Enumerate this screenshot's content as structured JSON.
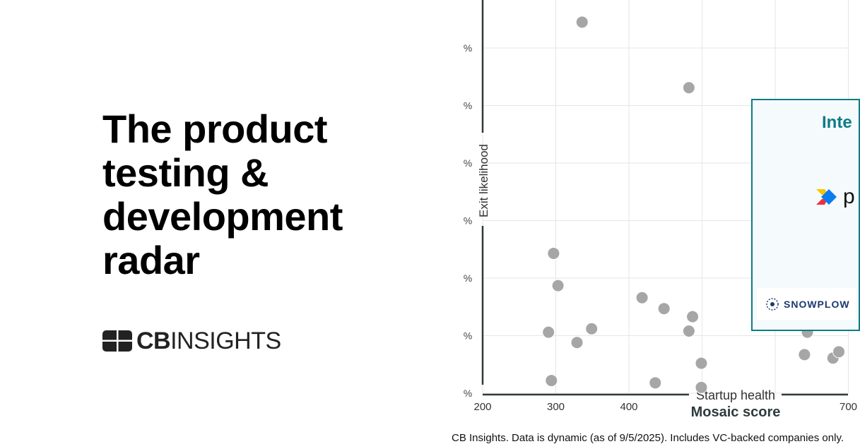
{
  "headline": "The product testing & development radar",
  "brand": {
    "logo_text_bold": "CB",
    "logo_text": "INSIGHTS"
  },
  "footer": "CB Insights. Data is dynamic (as of 9/5/2025). Includes VC-backed companies only.",
  "highlight_box": {
    "title": "Inte",
    "logos": [
      {
        "name": "p",
        "icon": "p-logo-icon"
      },
      {
        "name": "SNOWPLOW",
        "icon": "snowplow-icon"
      }
    ],
    "border_color": "#0e7c86"
  },
  "chart_data": {
    "type": "scatter",
    "xlabel": "Mosaic score",
    "xlabel_sub": "Startup health",
    "ylabel": "Exit likelihood",
    "x_ticks": [
      "200",
      "300",
      "400",
      "700"
    ],
    "y_tick_label": "%",
    "xlim": [
      200,
      700
    ],
    "ylim": [
      0,
      68
    ],
    "grid": true,
    "point_color": "#a6a6a6",
    "points": [
      {
        "x": 336,
        "y": 64.5
      },
      {
        "x": 482,
        "y": 53.1
      },
      {
        "x": 297,
        "y": 24.3
      },
      {
        "x": 303,
        "y": 18.7
      },
      {
        "x": 418,
        "y": 16.6
      },
      {
        "x": 448,
        "y": 14.7
      },
      {
        "x": 487,
        "y": 13.3
      },
      {
        "x": 482,
        "y": 10.8
      },
      {
        "x": 290,
        "y": 10.6
      },
      {
        "x": 349,
        "y": 11.2
      },
      {
        "x": 329,
        "y": 8.8
      },
      {
        "x": 499,
        "y": 5.2
      },
      {
        "x": 294,
        "y": 2.2
      },
      {
        "x": 436,
        "y": 1.8
      },
      {
        "x": 499,
        "y": 1.0
      },
      {
        "x": 644,
        "y": 10.6
      },
      {
        "x": 640,
        "y": 6.7
      },
      {
        "x": 679,
        "y": 6.1
      },
      {
        "x": 687,
        "y": 7.2
      }
    ]
  }
}
